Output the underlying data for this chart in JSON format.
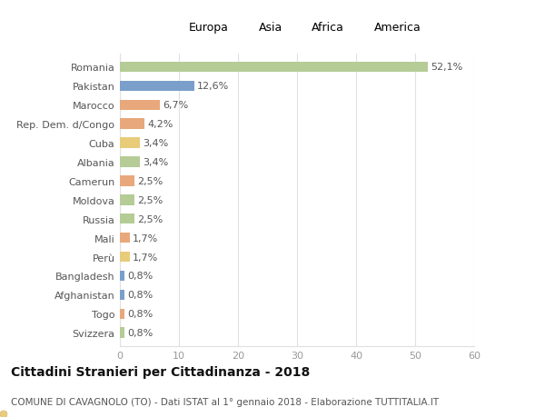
{
  "countries": [
    "Romania",
    "Pakistan",
    "Marocco",
    "Rep. Dem. d/Congo",
    "Cuba",
    "Albania",
    "Camerun",
    "Moldova",
    "Russia",
    "Mali",
    "Perù",
    "Bangladesh",
    "Afghanistan",
    "Togo",
    "Svizzera"
  ],
  "values": [
    52.1,
    12.6,
    6.7,
    4.2,
    3.4,
    3.4,
    2.5,
    2.5,
    2.5,
    1.7,
    1.7,
    0.8,
    0.8,
    0.8,
    0.8
  ],
  "labels": [
    "52,1%",
    "12,6%",
    "6,7%",
    "4,2%",
    "3,4%",
    "3,4%",
    "2,5%",
    "2,5%",
    "2,5%",
    "1,7%",
    "1,7%",
    "0,8%",
    "0,8%",
    "0,8%",
    "0,8%"
  ],
  "colors": [
    "#b5cc96",
    "#7a9fcb",
    "#e8a87c",
    "#e8a87c",
    "#e8cc7a",
    "#b5cc96",
    "#e8a87c",
    "#b5cc96",
    "#b5cc96",
    "#e8a87c",
    "#e8cc7a",
    "#7a9fcb",
    "#7a9fcb",
    "#e8a87c",
    "#b5cc96"
  ],
  "legend_labels": [
    "Europa",
    "Asia",
    "Africa",
    "America"
  ],
  "legend_colors": [
    "#b5cc96",
    "#7a9fcb",
    "#e8a87c",
    "#e8cc7a"
  ],
  "title": "Cittadini Stranieri per Cittadinanza - 2018",
  "subtitle": "COMUNE DI CAVAGNOLO (TO) - Dati ISTAT al 1° gennaio 2018 - Elaborazione TUTTITALIA.IT",
  "xlim": [
    0,
    60
  ],
  "xticks": [
    0,
    10,
    20,
    30,
    40,
    50,
    60
  ],
  "background_color": "#ffffff",
  "grid_color": "#e0e0e0",
  "bar_height": 0.55,
  "title_fontsize": 10,
  "subtitle_fontsize": 7.5,
  "label_fontsize": 8,
  "tick_fontsize": 8,
  "legend_fontsize": 9
}
